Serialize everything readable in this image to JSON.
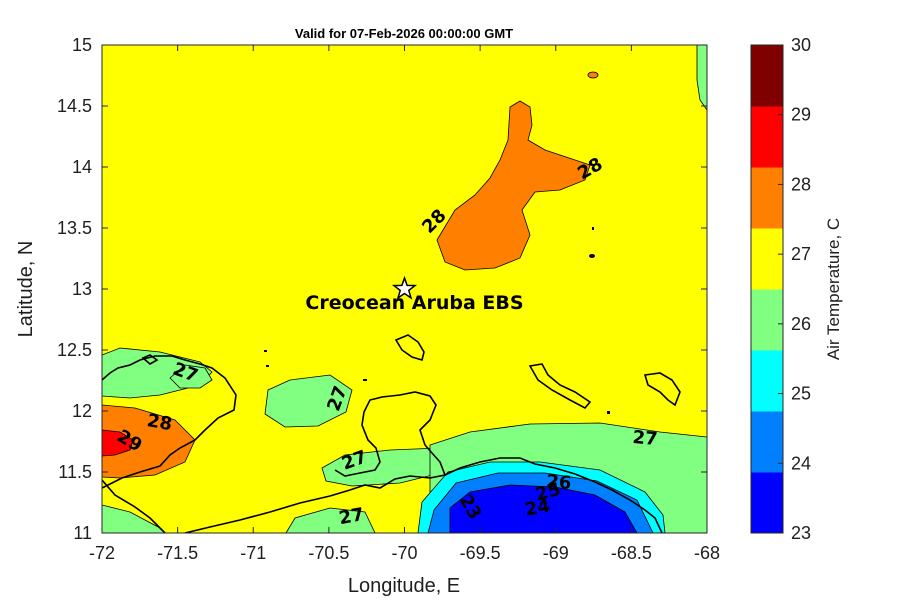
{
  "title": "Valid for 07-Feb-2026 00:00:00 GMT",
  "map": {
    "xlabel": "Longitude, E",
    "ylabel": "Latitude, N",
    "xticks": [
      "-72",
      "-71.5",
      "-71",
      "-70.5",
      "-70",
      "-69.5",
      "-69",
      "-68.5",
      "-68"
    ],
    "yticks": [
      "15",
      "14.5",
      "14",
      "13.5",
      "13",
      "12.5",
      "12",
      "11.5",
      "11"
    ],
    "xlim": [
      -72,
      -68
    ],
    "ylim": [
      11,
      15
    ],
    "station": {
      "name": "Creocean Aruba EBS",
      "lon": -70.0,
      "lat": 13.0
    },
    "contour_labels": [
      {
        "text": "28",
        "lon": -69.8,
        "lat": 13.55
      },
      {
        "text": "28",
        "lon": -68.77,
        "lat": 13.98
      },
      {
        "text": "27",
        "lon": -71.45,
        "lat": 12.31
      },
      {
        "text": "28",
        "lon": -71.62,
        "lat": 11.9
      },
      {
        "text": "29",
        "lon": -71.82,
        "lat": 11.75
      },
      {
        "text": "27",
        "lon": -70.44,
        "lat": 12.1
      },
      {
        "text": "27",
        "lon": -70.33,
        "lat": 11.59
      },
      {
        "text": "27",
        "lon": -70.35,
        "lat": 11.13
      },
      {
        "text": "27",
        "lon": -68.41,
        "lat": 11.77
      },
      {
        "text": "26",
        "lon": -68.98,
        "lat": 11.41
      },
      {
        "text": "25",
        "lon": -69.05,
        "lat": 11.33
      },
      {
        "text": "24",
        "lon": -69.12,
        "lat": 11.2
      },
      {
        "text": "23",
        "lon": -69.57,
        "lat": 11.21
      }
    ]
  },
  "colorbar": {
    "label": "Air Temperature, C",
    "ticks": [
      "30",
      "29",
      "28",
      "27",
      "26",
      "25",
      "24",
      "23"
    ],
    "range": [
      23,
      30
    ],
    "colors": [
      "#0000ff",
      "#0080ff",
      "#00ffff",
      "#80ff80",
      "#ffff00",
      "#ff8000",
      "#ff0000",
      "#800000"
    ]
  }
}
